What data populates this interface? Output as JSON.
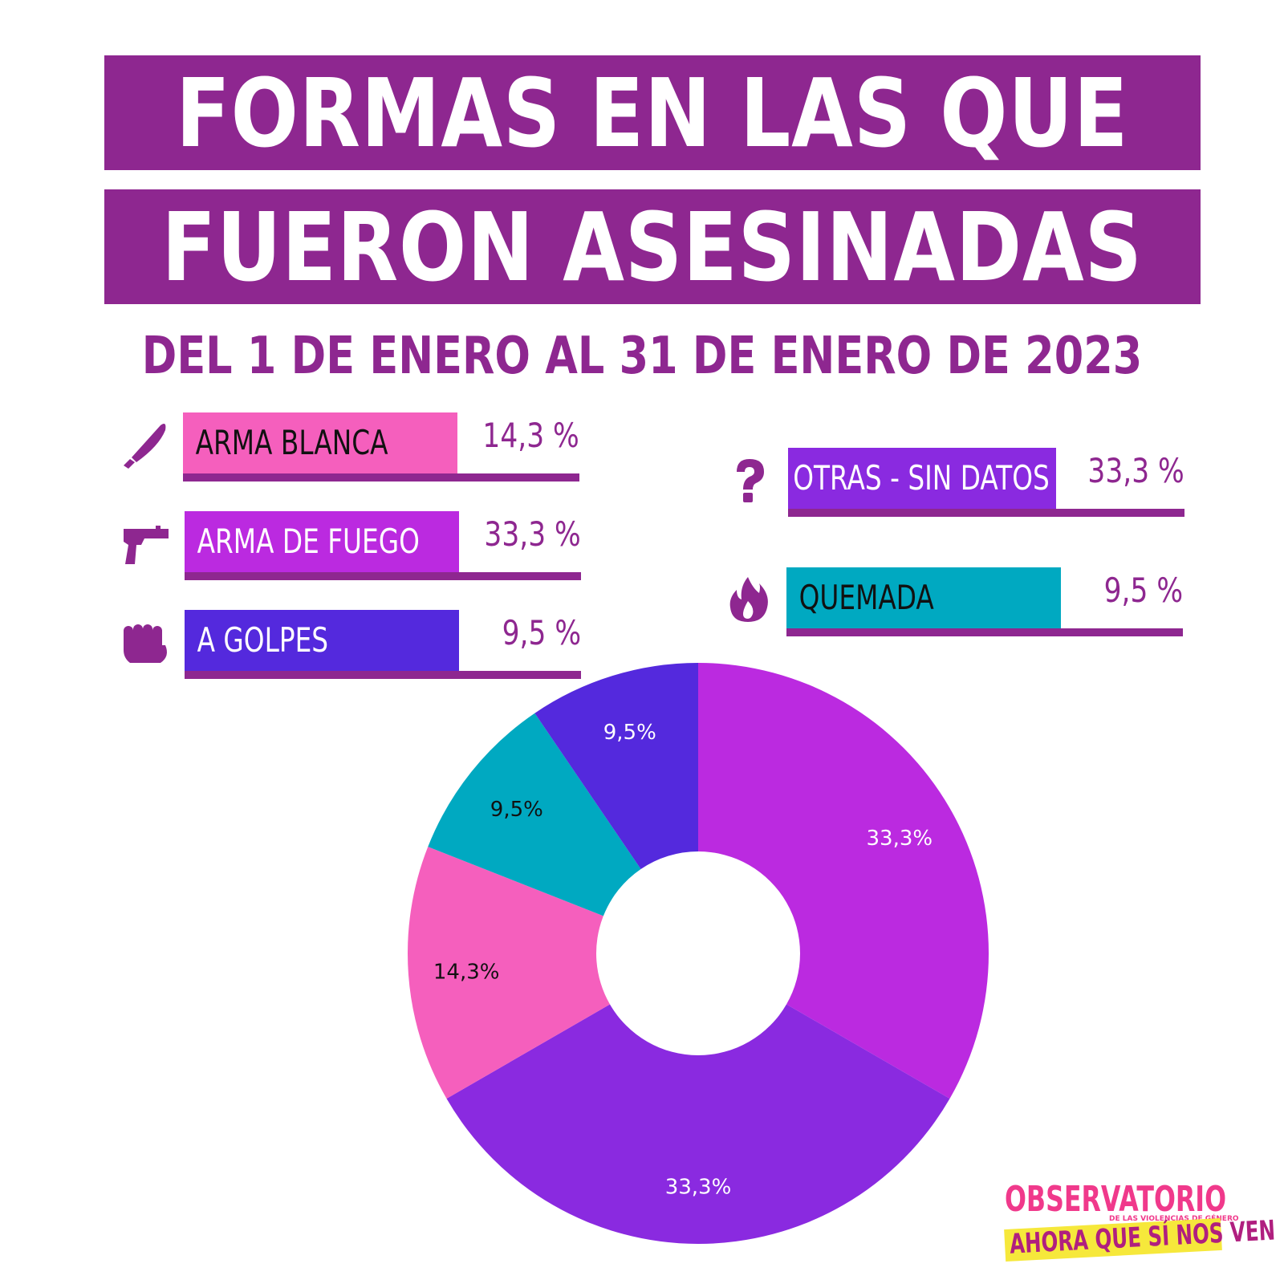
{
  "title": {
    "line1": "FORMAS EN LAS QUE",
    "line2": "FUERON ASESINADAS"
  },
  "subtitle": "DEL 1 DE ENERO AL 31 DE ENERO DE 2023",
  "colors": {
    "title_band": "#8e2790",
    "arma_blanca": "#f55fbd",
    "arma_de_fuego": "#bb2ae0",
    "a_golpes": "#5429dd",
    "otras_sin_datos": "#8a2ae0",
    "quemada": "#00a9c1"
  },
  "legend": [
    {
      "label": "ARMA BLANCA",
      "value": "14,3 %",
      "icon": "knife-icon",
      "color": "#f55fbd",
      "text_color": "#111111"
    },
    {
      "label": "ARMA DE FUEGO",
      "value": "33,3 %",
      "icon": "gun-icon",
      "color": "#bb2ae0",
      "text_color": "#ffffff"
    },
    {
      "label": "A GOLPES",
      "value": "9,5 %",
      "icon": "fist-icon",
      "color": "#5429dd",
      "text_color": "#ffffff"
    },
    {
      "label": "OTRAS - SIN DATOS",
      "value": "33,3 %",
      "icon": "question-icon",
      "color": "#8a2ae0",
      "text_color": "#ffffff"
    },
    {
      "label": "QUEMADA",
      "value": "9,5 %",
      "icon": "flame-icon",
      "color": "#00a9c1",
      "text_color": "#111111"
    }
  ],
  "chart_data": {
    "type": "pie",
    "donut": true,
    "categories": [
      "ARMA DE FUEGO",
      "OTRAS - SIN DATOS",
      "ARMA BLANCA",
      "QUEMADA",
      "A GOLPES"
    ],
    "values": [
      33.3,
      33.3,
      14.3,
      9.5,
      9.5
    ],
    "labels": [
      "33,3%",
      "33,3%",
      "14,3%",
      "9,5%",
      "9,5%"
    ],
    "colors": [
      "#bb2ae0",
      "#8a2ae0",
      "#f55fbd",
      "#00a9c1",
      "#5429dd"
    ],
    "label_colors": [
      "#ffffff",
      "#ffffff",
      "#111111",
      "#111111",
      "#ffffff"
    ],
    "start": "top",
    "direction": "clockwise"
  },
  "logo": {
    "line1": "OBSERVATORIO",
    "line2": "DE LAS VIOLENCIAS DE GÉNERO",
    "line3": "AHORA QUE SÍ NOS VEN"
  }
}
